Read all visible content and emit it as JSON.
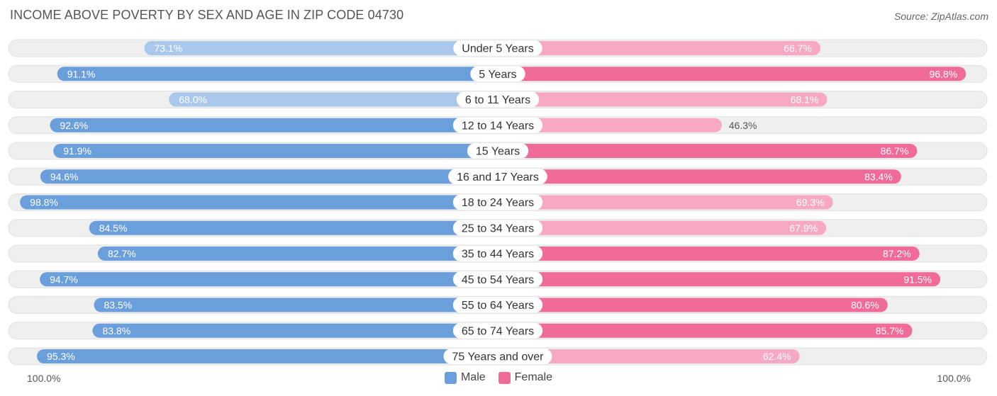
{
  "title": "INCOME ABOVE POVERTY BY SEX AND AGE IN ZIP CODE 04730",
  "source": "Source: ZipAtlas.com",
  "colors": {
    "male": "#6a9fdc",
    "male_light": "#a9c8ec",
    "female": "#f06b97",
    "female_light": "#f7a9c3",
    "track": "#efefef"
  },
  "legend": {
    "male_label": "Male",
    "female_label": "Female"
  },
  "axis": {
    "left_label": "100.0%",
    "right_label": "100.0%"
  },
  "chart_data": {
    "type": "bar",
    "orientation": "horizontal-diverging",
    "title": "INCOME ABOVE POVERTY BY SEX AND AGE IN ZIP CODE 04730",
    "xlim": [
      0,
      100
    ],
    "unit": "%",
    "categories": [
      "Under 5 Years",
      "5 Years",
      "6 to 11 Years",
      "12 to 14 Years",
      "15 Years",
      "16 and 17 Years",
      "18 to 24 Years",
      "25 to 34 Years",
      "35 to 44 Years",
      "45 to 54 Years",
      "55 to 64 Years",
      "65 to 74 Years",
      "75 Years and over"
    ],
    "series": [
      {
        "name": "Male",
        "values": [
          73.1,
          91.1,
          68.0,
          92.6,
          91.9,
          94.6,
          98.8,
          84.5,
          82.7,
          94.7,
          83.5,
          83.8,
          95.3
        ],
        "labels": [
          "73.1%",
          "91.1%",
          "68.0%",
          "92.6%",
          "91.9%",
          "94.6%",
          "98.8%",
          "84.5%",
          "82.7%",
          "94.7%",
          "83.5%",
          "83.8%",
          "95.3%"
        ]
      },
      {
        "name": "Female",
        "values": [
          66.7,
          96.8,
          68.1,
          46.3,
          86.7,
          83.4,
          69.3,
          67.9,
          87.2,
          91.5,
          80.6,
          85.7,
          62.4
        ],
        "labels": [
          "66.7%",
          "96.8%",
          "68.1%",
          "46.3%",
          "86.7%",
          "83.4%",
          "69.3%",
          "67.9%",
          "87.2%",
          "91.5%",
          "80.6%",
          "85.7%",
          "62.4%"
        ]
      }
    ],
    "legend_position": "bottom-center"
  }
}
